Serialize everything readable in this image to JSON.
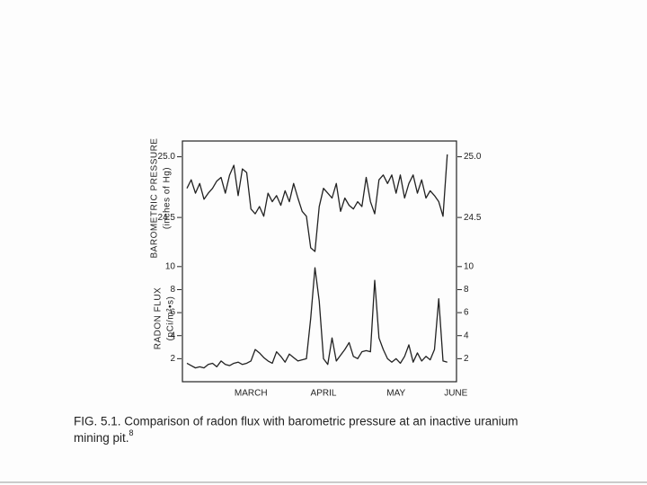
{
  "chart_data": [
    {
      "type": "line",
      "ylabel": [
        "BAROMETRIC PRESSURE",
        "(inches of Hg)"
      ],
      "ylim": [
        24.19,
        25.13
      ],
      "yticks": [
        24.5,
        {
          "value": 25,
          "label": "25.0"
        }
      ],
      "series": [
        {
          "name": null,
          "color": "#222222",
          "values": [
            24.74,
            24.81,
            24.7,
            24.78,
            24.65,
            24.7,
            24.74,
            24.8,
            24.83,
            24.7,
            24.85,
            24.93,
            24.68,
            24.9,
            24.87,
            24.57,
            24.53,
            24.59,
            24.51,
            24.7,
            24.63,
            24.68,
            24.6,
            24.72,
            24.63,
            24.78,
            24.66,
            24.55,
            24.51,
            24.25,
            24.22,
            24.59,
            24.74,
            24.7,
            24.66,
            24.78,
            24.55,
            24.66,
            24.6,
            24.57,
            24.63,
            24.59,
            24.83,
            24.63,
            24.53,
            24.81,
            24.85,
            24.78,
            24.85,
            24.7,
            24.85,
            24.66,
            24.78,
            24.85,
            24.7,
            24.81,
            24.66,
            24.72,
            24.68,
            24.63,
            24.51,
            25.02,
            null,
            null
          ]
        }
      ]
    },
    {
      "type": "line",
      "ylabel": [
        "RADON FLUX",
        "(pCi/m²•s)"
      ],
      "categories": [
        null,
        null,
        null,
        null,
        null,
        null,
        null,
        null,
        null,
        null,
        null,
        null,
        null,
        null,
        null,
        "MARCH",
        null,
        null,
        null,
        null,
        null,
        null,
        null,
        null,
        null,
        null,
        null,
        null,
        null,
        null,
        null,
        null,
        "APRIL",
        null,
        null,
        null,
        null,
        null,
        null,
        null,
        null,
        null,
        null,
        null,
        null,
        null,
        null,
        null,
        null,
        "MAY",
        null,
        null,
        null,
        null,
        null,
        null,
        null,
        null,
        null,
        null,
        null,
        null,
        null,
        "JUNE"
      ],
      "ylim": [
        0,
        11
      ],
      "yticks": [
        2,
        4,
        6,
        8,
        10
      ],
      "series": [
        {
          "name": null,
          "color": "#222222",
          "values": [
            1.6,
            1.4,
            1.2,
            1.3,
            1.2,
            1.5,
            1.6,
            1.3,
            1.8,
            1.5,
            1.4,
            1.6,
            1.7,
            1.5,
            1.6,
            1.8,
            2.8,
            2.5,
            2.1,
            1.8,
            1.6,
            2.6,
            2.2,
            1.7,
            2.4,
            2.1,
            1.8,
            1.9,
            2.0,
            5.5,
            9.9,
            7.0,
            2.0,
            1.5,
            3.8,
            1.8,
            2.3,
            2.8,
            3.4,
            2.2,
            2.0,
            2.6,
            2.7,
            2.6,
            8.8,
            3.8,
            2.8,
            2.0,
            1.7,
            2.0,
            1.6,
            2.2,
            3.2,
            1.7,
            2.5,
            1.8,
            2.2,
            1.9,
            2.8,
            7.2,
            1.8,
            1.7,
            null,
            null
          ]
        }
      ]
    }
  ],
  "caption": {
    "text": "FIG. 5.1.  Comparison of radon flux with barometric pressure at an inactive uranium",
    "text2": "mining pit.",
    "ref": "8"
  }
}
